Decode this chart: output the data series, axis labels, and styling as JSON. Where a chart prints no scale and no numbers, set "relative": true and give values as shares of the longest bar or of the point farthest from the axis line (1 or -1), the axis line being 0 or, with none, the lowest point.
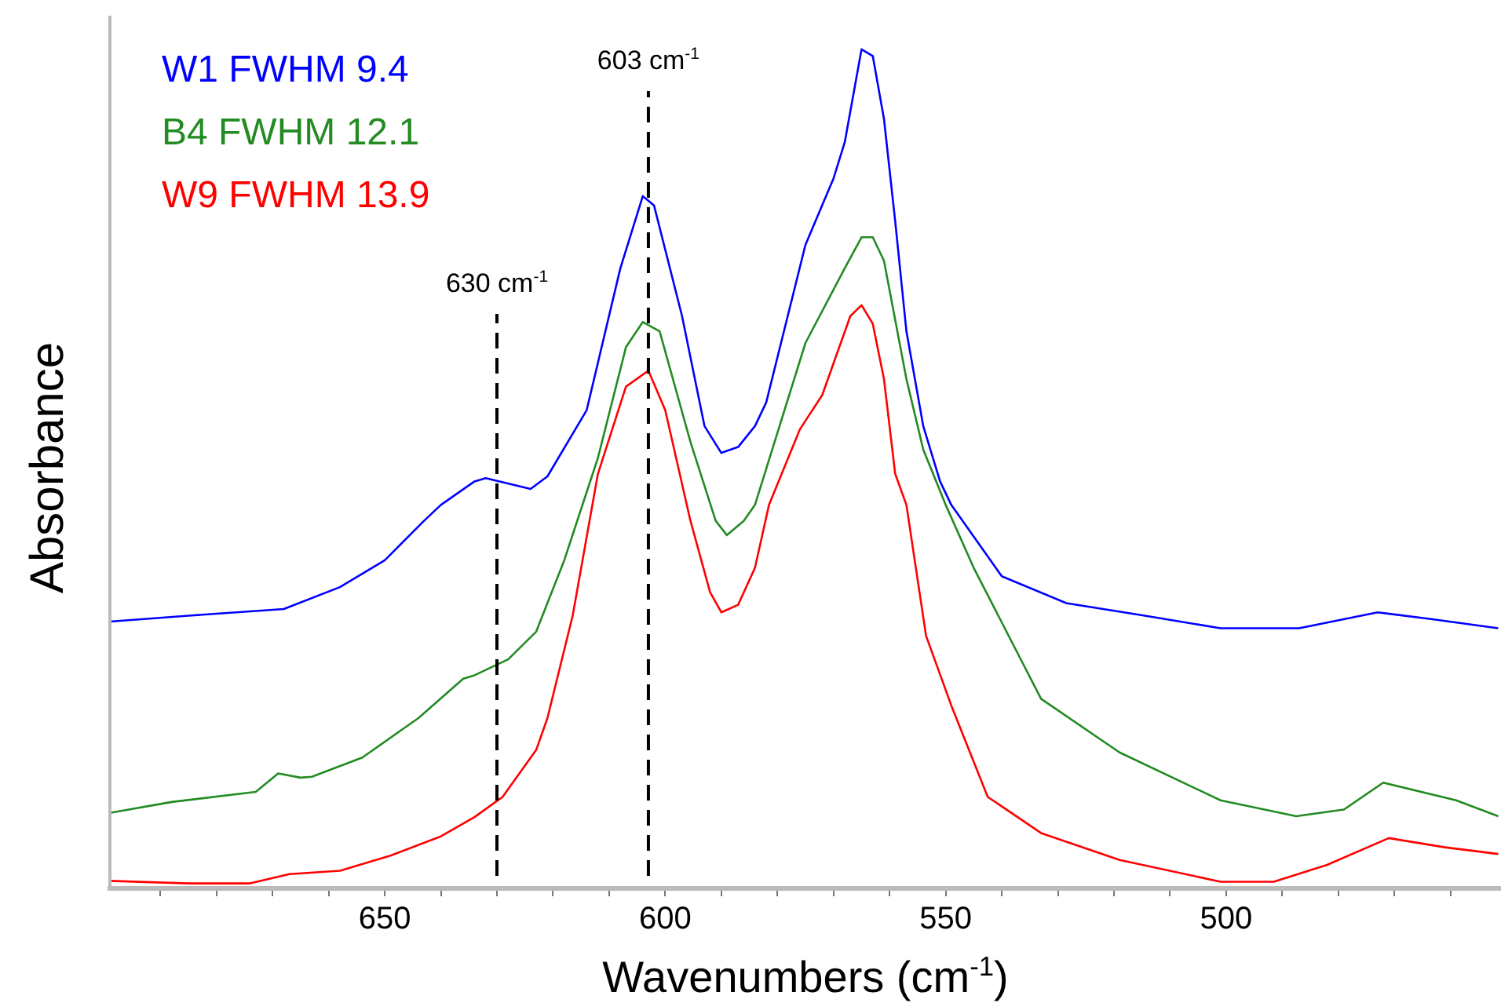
{
  "chart_data": {
    "type": "line",
    "relative": true,
    "xlabel": "Wavenumbers (cm$^{-1}$)",
    "ylabel": "Absorbance",
    "legend": "top left",
    "marker": "none",
    "line_style": "solid",
    "grid": false,
    "xlim": [
      699,
      451
    ],
    "xticks": [
      {
        "value": 690,
        "label": null
      },
      {
        "value": 680,
        "label": null
      },
      {
        "value": 670,
        "label": null
      },
      {
        "value": 660,
        "label": null
      },
      650,
      {
        "value": 640,
        "label": null
      },
      {
        "value": 630,
        "label": null
      },
      {
        "value": 620,
        "label": null
      },
      {
        "value": 610,
        "label": null
      },
      600,
      {
        "value": 590,
        "label": null
      },
      {
        "value": 580,
        "label": null
      },
      {
        "value": 570,
        "label": null
      },
      {
        "value": 560,
        "label": null
      },
      550,
      {
        "value": 540,
        "label": null
      },
      {
        "value": 530,
        "label": null
      },
      {
        "value": 520,
        "label": null
      },
      {
        "value": 510,
        "label": null
      },
      500,
      {
        "value": 490,
        "label": null
      },
      {
        "value": 480,
        "label": null
      },
      {
        "value": 470,
        "label": null
      },
      {
        "value": 460,
        "label": null
      }
    ],
    "ref_lines": [
      {
        "axis": "x",
        "value": 630,
        "label": "630 cm$^{-1}$",
        "color": "#000000",
        "line_style": "dashed"
      },
      {
        "axis": "x",
        "value": 603,
        "label": "603 cm$^{-1}$",
        "color": "#000000",
        "line_style": "dashed"
      }
    ],
    "series": [
      {
        "name": "W1 FWHM 9.4",
        "color": "#0000ff",
        "x": [
          699,
          685,
          668,
          658,
          650,
          643,
          640,
          634,
          632,
          624,
          621,
          614,
          608,
          604,
          602,
          597,
          593,
          590,
          587,
          584,
          582,
          575,
          570,
          568,
          565,
          563,
          561,
          559,
          557,
          554,
          551,
          549,
          540,
          528.5,
          514.5,
          501,
          487,
          473,
          463.5,
          451.5
        ],
        "values": [
          0.318,
          0.325,
          0.333,
          0.359,
          0.391,
          0.438,
          0.457,
          0.485,
          0.489,
          0.476,
          0.491,
          0.57,
          0.739,
          0.825,
          0.814,
          0.682,
          0.551,
          0.519,
          0.526,
          0.551,
          0.579,
          0.767,
          0.846,
          0.889,
          1.0,
          0.992,
          0.917,
          0.795,
          0.664,
          0.551,
          0.485,
          0.457,
          0.372,
          0.34,
          0.325,
          0.31,
          0.31,
          0.329,
          0.321,
          0.31
        ]
      },
      {
        "name": "B4 FWHM 12.1",
        "color": "#228b22",
        "x": [
          699,
          688,
          673,
          669,
          665,
          663,
          654,
          644,
          636,
          634,
          628,
          623,
          618,
          612,
          607,
          604,
          601,
          595.5,
          591,
          589,
          586,
          584,
          575,
          568,
          565,
          563,
          561,
          557,
          554,
          550,
          545,
          533,
          519,
          501,
          487.5,
          479,
          472,
          459,
          451.5
        ],
        "values": [
          0.09,
          0.103,
          0.115,
          0.137,
          0.132,
          0.133,
          0.156,
          0.203,
          0.25,
          0.254,
          0.273,
          0.306,
          0.391,
          0.513,
          0.645,
          0.675,
          0.664,
          0.532,
          0.438,
          0.421,
          0.438,
          0.457,
          0.65,
          0.739,
          0.776,
          0.776,
          0.748,
          0.607,
          0.523,
          0.457,
          0.382,
          0.226,
          0.162,
          0.105,
          0.086,
          0.094,
          0.126,
          0.105,
          0.086
        ]
      },
      {
        "name": "W9 FWHM 13.9",
        "color": "#ff0000",
        "x": [
          699,
          685,
          674,
          667,
          658,
          649,
          640,
          634,
          629,
          623,
          621,
          616.5,
          612,
          607,
          603,
          600,
          595.5,
          592,
          590,
          587,
          584,
          581.5,
          576,
          572,
          567,
          565,
          563,
          561,
          559,
          557,
          553.5,
          549,
          542.5,
          533,
          519,
          501,
          491.5,
          482,
          471,
          461,
          451.5
        ],
        "values": [
          0.009,
          0.006,
          0.006,
          0.017,
          0.021,
          0.039,
          0.062,
          0.085,
          0.109,
          0.165,
          0.203,
          0.325,
          0.494,
          0.598,
          0.617,
          0.57,
          0.438,
          0.353,
          0.329,
          0.338,
          0.382,
          0.457,
          0.547,
          0.588,
          0.682,
          0.695,
          0.673,
          0.607,
          0.494,
          0.457,
          0.301,
          0.218,
          0.109,
          0.066,
          0.034,
          0.008,
          0.008,
          0.028,
          0.06,
          0.049,
          0.041
        ]
      }
    ]
  }
}
